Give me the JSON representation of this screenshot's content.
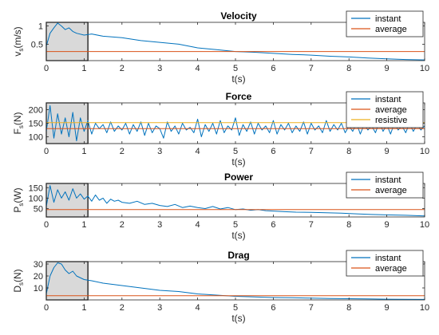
{
  "colors": {
    "instant": "#0072BD",
    "average": "#D95319",
    "resistive": "#EDB120",
    "highlight": "#d9d9d9",
    "axis": "#262626"
  },
  "chart_data": [
    {
      "type": "line",
      "title": "Velocity",
      "ylabel": "v",
      "ylabel_sub": "s",
      "ylabel_unit": "(m/s)",
      "xlabel": "t(s)",
      "xlim": [
        0,
        10
      ],
      "ylim": [
        0.05,
        1.1
      ],
      "xticks": [
        "0",
        "1",
        "2",
        "3",
        "4",
        "5",
        "6",
        "7",
        "8",
        "9",
        "10"
      ],
      "yticks": [
        {
          "v": 0.5,
          "label": "0.5"
        },
        {
          "v": 1,
          "label": "1"
        }
      ],
      "highlight": [
        0,
        1.1
      ],
      "legend": [
        "instant",
        "average"
      ],
      "series": [
        {
          "name": "instant",
          "role": "instant",
          "x": [
            0,
            0.1,
            0.2,
            0.3,
            0.4,
            0.5,
            0.6,
            0.7,
            0.8,
            1.0,
            1.2,
            1.5,
            2.0,
            2.5,
            3.0,
            3.5,
            4.0,
            4.5,
            5.0,
            5.5,
            6.0,
            6.5,
            7.0,
            7.5,
            8.0,
            8.5,
            9.0,
            9.5,
            10.0
          ],
          "y": [
            0.45,
            0.8,
            0.95,
            1.08,
            1.0,
            0.9,
            0.95,
            0.85,
            0.8,
            0.75,
            0.78,
            0.72,
            0.68,
            0.6,
            0.55,
            0.5,
            0.4,
            0.35,
            0.3,
            0.28,
            0.25,
            0.22,
            0.2,
            0.17,
            0.15,
            0.12,
            0.1,
            0.08,
            0.07
          ]
        },
        {
          "name": "average",
          "role": "average",
          "x": [
            0,
            10
          ],
          "y": [
            0.3,
            0.3
          ]
        }
      ]
    },
    {
      "type": "line",
      "title": "Force",
      "ylabel": "F",
      "ylabel_sub": "s",
      "ylabel_unit": "(N)",
      "xlabel": "t(s)",
      "xlim": [
        0,
        10
      ],
      "ylim": [
        75,
        225
      ],
      "xticks": [
        "0",
        "1",
        "2",
        "3",
        "4",
        "5",
        "6",
        "7",
        "8",
        "9",
        "10"
      ],
      "yticks": [
        {
          "v": 100,
          "label": "100"
        },
        {
          "v": 150,
          "label": "150"
        },
        {
          "v": 200,
          "label": "200"
        }
      ],
      "highlight": [
        0,
        1.1
      ],
      "legend": [
        "instant",
        "average",
        "resistive"
      ],
      "series": [
        {
          "name": "instant",
          "role": "instant",
          "x": [
            0,
            0.1,
            0.2,
            0.3,
            0.4,
            0.5,
            0.6,
            0.7,
            0.8,
            0.9,
            1.0,
            1.1,
            1.2,
            1.3,
            1.4,
            1.5,
            1.6,
            1.7,
            1.8,
            1.9,
            2.0,
            2.1,
            2.2,
            2.3,
            2.4,
            2.5,
            2.6,
            2.7,
            2.8,
            2.9,
            3.0,
            3.1,
            3.2,
            3.3,
            3.4,
            3.5,
            3.6,
            3.7,
            3.8,
            3.9,
            4.0,
            4.1,
            4.2,
            4.3,
            4.4,
            4.5,
            4.6,
            4.7,
            4.8,
            4.9,
            5.0,
            5.1,
            5.2,
            5.3,
            5.4,
            5.5,
            5.6,
            5.7,
            5.8,
            5.9,
            6.0,
            6.1,
            6.2,
            6.3,
            6.4,
            6.5,
            6.6,
            6.7,
            6.8,
            6.9,
            7.0,
            7.1,
            7.2,
            7.3,
            7.4,
            7.5,
            7.6,
            7.7,
            7.8,
            7.9,
            8.0,
            8.1,
            8.2,
            8.3,
            8.4,
            8.5,
            8.6,
            8.7,
            8.8,
            8.9,
            9.0,
            9.1,
            9.2,
            9.3,
            9.4,
            9.5,
            9.6,
            9.7,
            9.8,
            9.9,
            10.0
          ],
          "y": [
            120,
            215,
            95,
            185,
            110,
            170,
            100,
            190,
            85,
            170,
            120,
            160,
            110,
            150,
            130,
            145,
            115,
            155,
            120,
            140,
            125,
            150,
            110,
            145,
            120,
            155,
            105,
            150,
            115,
            140,
            130,
            95,
            155,
            120,
            140,
            110,
            150,
            125,
            135,
            115,
            165,
            100,
            145,
            120,
            150,
            110,
            160,
            115,
            140,
            125,
            170,
            105,
            145,
            120,
            155,
            110,
            150,
            125,
            140,
            115,
            160,
            110,
            145,
            125,
            150,
            115,
            140,
            120,
            155,
            110,
            150,
            125,
            140,
            115,
            160,
            120,
            145,
            125,
            150,
            115,
            140,
            120,
            150,
            110,
            145,
            125,
            140,
            115,
            155,
            120,
            145,
            110,
            150,
            125,
            140,
            115,
            150,
            120,
            145,
            125,
            140
          ]
        },
        {
          "name": "average",
          "role": "average",
          "x": [
            0,
            10
          ],
          "y": [
            130,
            130
          ]
        },
        {
          "name": "resistive",
          "role": "resistive",
          "x": [
            0,
            10
          ],
          "y": [
            152,
            152
          ]
        }
      ]
    },
    {
      "type": "line",
      "title": "Power",
      "ylabel": "P",
      "ylabel_sub": "s",
      "ylabel_unit": "(W)",
      "xlabel": "t(s)",
      "xlim": [
        0,
        10
      ],
      "ylim": [
        10,
        170
      ],
      "xticks": [
        "0",
        "1",
        "2",
        "3",
        "4",
        "5",
        "6",
        "7",
        "8",
        "9",
        "10"
      ],
      "yticks": [
        {
          "v": 50,
          "label": "50"
        },
        {
          "v": 100,
          "label": "100"
        },
        {
          "v": 150,
          "label": "150"
        }
      ],
      "highlight": [
        0,
        1.1
      ],
      "legend": [
        "instant",
        "average"
      ],
      "series": [
        {
          "name": "instant",
          "role": "instant",
          "x": [
            0,
            0.1,
            0.2,
            0.3,
            0.4,
            0.5,
            0.6,
            0.7,
            0.8,
            0.9,
            1.0,
            1.1,
            1.2,
            1.3,
            1.4,
            1.5,
            1.6,
            1.7,
            1.8,
            1.9,
            2.0,
            2.2,
            2.4,
            2.6,
            2.8,
            3.0,
            3.2,
            3.4,
            3.6,
            3.8,
            4.0,
            4.2,
            4.4,
            4.6,
            4.8,
            5.0,
            5.2,
            5.4,
            5.6,
            5.8,
            6.0,
            6.3,
            6.6,
            7.0,
            7.4,
            7.8,
            8.2,
            8.6,
            9.0,
            9.5,
            10.0
          ],
          "y": [
            60,
            160,
            80,
            140,
            100,
            130,
            90,
            145,
            100,
            120,
            95,
            110,
            85,
            115,
            90,
            100,
            75,
            95,
            85,
            90,
            80,
            75,
            85,
            70,
            75,
            65,
            60,
            70,
            55,
            62,
            55,
            50,
            60,
            48,
            55,
            45,
            48,
            42,
            45,
            40,
            38,
            35,
            33,
            32,
            30,
            28,
            25,
            22,
            20,
            18,
            15
          ]
        },
        {
          "name": "average",
          "role": "average",
          "x": [
            0,
            10
          ],
          "y": [
            45,
            45
          ]
        }
      ]
    },
    {
      "type": "line",
      "title": "Drag",
      "ylabel": "D",
      "ylabel_sub": "s",
      "ylabel_unit": "(N)",
      "xlabel": "t(s)",
      "xlim": [
        0,
        10
      ],
      "ylim": [
        0,
        32
      ],
      "xticks": [
        "0",
        "1",
        "2",
        "3",
        "4",
        "5",
        "6",
        "7",
        "8",
        "9",
        "10"
      ],
      "yticks": [
        {
          "v": 10,
          "label": "10"
        },
        {
          "v": 20,
          "label": "20"
        },
        {
          "v": 30,
          "label": "30"
        }
      ],
      "highlight": [
        0,
        1.1
      ],
      "legend": [
        "instant",
        "average"
      ],
      "series": [
        {
          "name": "instant",
          "role": "instant",
          "x": [
            0,
            0.1,
            0.2,
            0.3,
            0.4,
            0.5,
            0.6,
            0.7,
            0.8,
            1.0,
            1.2,
            1.5,
            2.0,
            2.5,
            3.0,
            3.5,
            4.0,
            4.5,
            5.0,
            5.5,
            6.0,
            6.5,
            7.0,
            7.5,
            8.0,
            8.5,
            9.0,
            9.5,
            10.0
          ],
          "y": [
            5,
            20,
            27,
            31,
            30,
            25,
            22,
            24,
            20,
            17,
            16,
            14,
            12,
            10,
            8,
            7,
            5,
            4,
            3,
            2.5,
            2,
            1.8,
            1.5,
            1.2,
            1,
            0.8,
            0.6,
            0.5,
            0.4
          ]
        },
        {
          "name": "average",
          "role": "average",
          "x": [
            0,
            10
          ],
          "y": [
            3.5,
            3.5
          ]
        }
      ]
    }
  ]
}
